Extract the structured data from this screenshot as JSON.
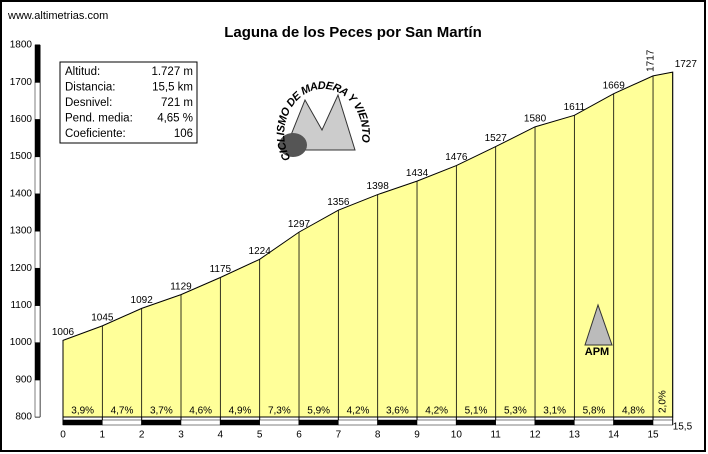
{
  "chart_data": {
    "type": "area",
    "site": "www.altimetrias.com",
    "title": "Laguna de los Peces por San Martín",
    "info": [
      [
        "Altitud:",
        "1.727 m"
      ],
      [
        "Distancia:",
        "15,5 km"
      ],
      [
        "Desnivel:",
        "721 m"
      ],
      [
        "Pend. media:",
        "4,65 %"
      ],
      [
        "Coeficiente:",
        "106"
      ]
    ],
    "logo_text": "CICLISMO DE MADERA Y VIENTO",
    "badge": "APM",
    "x": [
      0,
      1,
      2,
      3,
      4,
      5,
      6,
      7,
      8,
      9,
      10,
      11,
      12,
      13,
      14,
      15,
      15.5
    ],
    "values": [
      1006,
      1045,
      1092,
      1129,
      1175,
      1224,
      1297,
      1356,
      1398,
      1434,
      1476,
      1527,
      1580,
      1611,
      1669,
      1717,
      1727
    ],
    "grades": [
      "3,9%",
      "4,7%",
      "3,7%",
      "4,6%",
      "4,9%",
      "7,3%",
      "5,9%",
      "4,2%",
      "3,6%",
      "4,2%",
      "5,1%",
      "5,3%",
      "3,1%",
      "5,8%",
      "4,8%",
      "2,0%"
    ],
    "color": "#ffff99",
    "xlim": [
      0,
      15.5
    ],
    "ylim": [
      800,
      1800
    ],
    "xticks": [
      0,
      1,
      2,
      3,
      4,
      5,
      6,
      7,
      8,
      9,
      10,
      11,
      12,
      13,
      14,
      15,
      {
        "value": 15.5,
        "label": "15,5"
      }
    ],
    "yticks": [
      800,
      900,
      1000,
      1100,
      1200,
      1300,
      1400,
      1500,
      1600,
      1700,
      1800
    ]
  }
}
